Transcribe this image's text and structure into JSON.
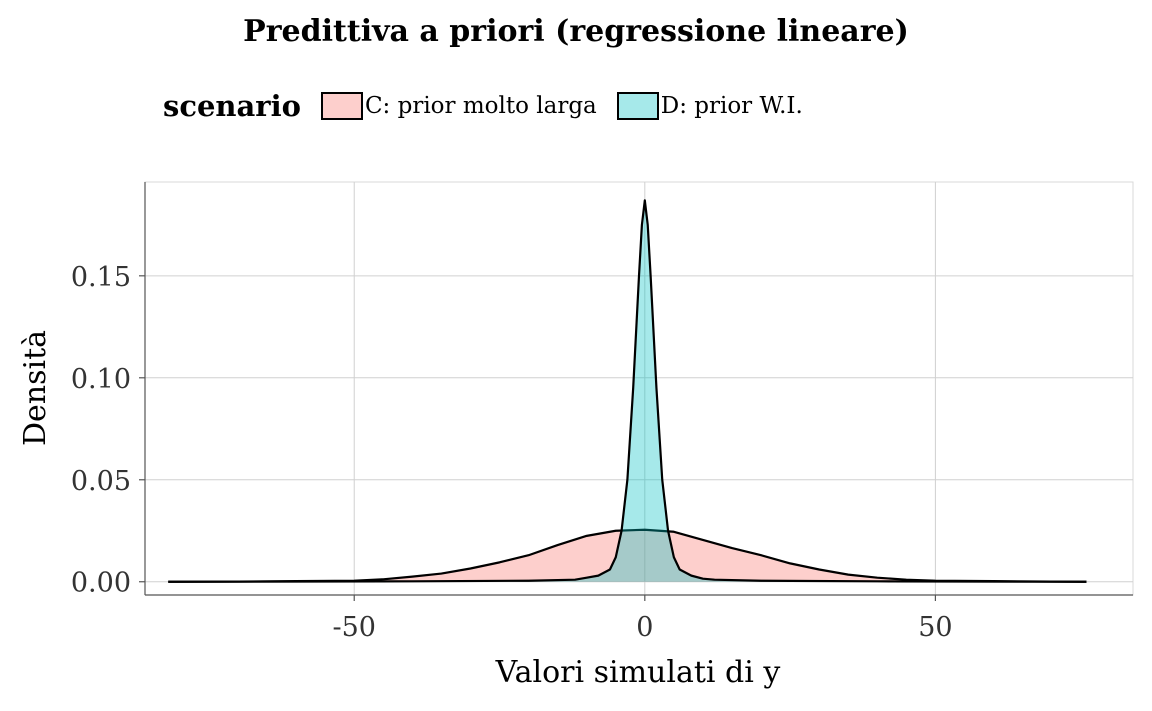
{
  "chart_data": {
    "type": "area",
    "title": "Predittiva a priori (regressione lineare)",
    "xlabel": "Valori simulati di y",
    "ylabel": "Densità",
    "xlim": [
      -86,
      84
    ],
    "ylim": [
      -0.0065,
      0.196
    ],
    "x_ticks": [
      -50,
      0,
      50
    ],
    "x_tick_labels": [
      "-50",
      "0",
      "50"
    ],
    "y_ticks": [
      0.0,
      0.05,
      0.1,
      0.15
    ],
    "y_tick_labels": [
      "0.00",
      "0.05",
      "0.10",
      "0.15"
    ],
    "grid": true,
    "legend": {
      "title": "scenario",
      "position": "top"
    },
    "series": [
      {
        "name": "C: prior molto larga",
        "color": "#F8766D",
        "fill_opacity": 0.35,
        "x": [
          -82,
          -70,
          -60,
          -50,
          -45,
          -40,
          -35,
          -30,
          -25,
          -20,
          -15,
          -10,
          -5,
          0,
          5,
          10,
          15,
          20,
          25,
          30,
          35,
          40,
          45,
          50,
          60,
          70,
          76
        ],
        "y": [
          0.0,
          0.0001,
          0.0003,
          0.0005,
          0.0012,
          0.0025,
          0.004,
          0.0065,
          0.0095,
          0.013,
          0.018,
          0.0225,
          0.025,
          0.0255,
          0.0245,
          0.0205,
          0.0165,
          0.013,
          0.009,
          0.006,
          0.0035,
          0.002,
          0.001,
          0.0005,
          0.0003,
          0.0001,
          0.0
        ]
      },
      {
        "name": "D: prior W.I.",
        "color": "#00BFC4",
        "fill_opacity": 0.35,
        "x": [
          -82,
          -40,
          -20,
          -12,
          -10,
          -8,
          -6,
          -5,
          -4,
          -3,
          -2,
          -1,
          -0.5,
          0,
          0.5,
          1,
          2,
          3,
          4,
          5,
          6,
          8,
          10,
          12,
          20,
          40,
          76
        ],
        "y": [
          0.0,
          0.0002,
          0.0005,
          0.001,
          0.002,
          0.003,
          0.006,
          0.012,
          0.025,
          0.05,
          0.095,
          0.15,
          0.175,
          0.187,
          0.175,
          0.15,
          0.095,
          0.05,
          0.025,
          0.012,
          0.006,
          0.003,
          0.0015,
          0.001,
          0.0005,
          0.0002,
          0.0
        ]
      }
    ]
  }
}
